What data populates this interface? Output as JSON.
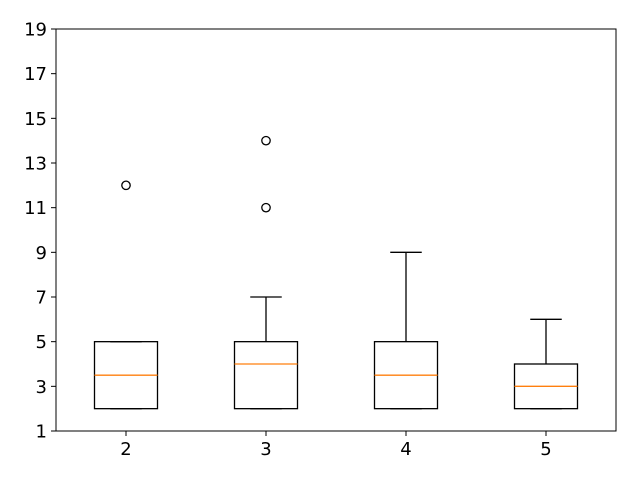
{
  "colors": {
    "box": "#000000",
    "whisker": "#000000",
    "median": "#ff7f0e",
    "outlier": "#000000",
    "background": "#ffffff"
  },
  "chart_data": {
    "type": "boxplot",
    "title": "",
    "xlabel": "",
    "ylabel": "",
    "ylim": [
      1,
      19
    ],
    "yticks": [
      1,
      3,
      5,
      7,
      9,
      11,
      13,
      15,
      17,
      19
    ],
    "categories": [
      "2",
      "3",
      "4",
      "5"
    ],
    "boxes": [
      {
        "category": "2",
        "whisker_low": 2,
        "q1": 2,
        "median": 3.5,
        "q3": 5,
        "whisker_high": 5,
        "outliers": [
          12
        ]
      },
      {
        "category": "3",
        "whisker_low": 2,
        "q1": 2,
        "median": 4,
        "q3": 5,
        "whisker_high": 7,
        "outliers": [
          11,
          14
        ]
      },
      {
        "category": "4",
        "whisker_low": 2,
        "q1": 2,
        "median": 3.5,
        "q3": 5,
        "whisker_high": 9,
        "outliers": []
      },
      {
        "category": "5",
        "whisker_low": 2,
        "q1": 2,
        "median": 3,
        "q3": 4,
        "whisker_high": 6,
        "outliers": []
      }
    ],
    "grid": false,
    "legend": "none"
  }
}
